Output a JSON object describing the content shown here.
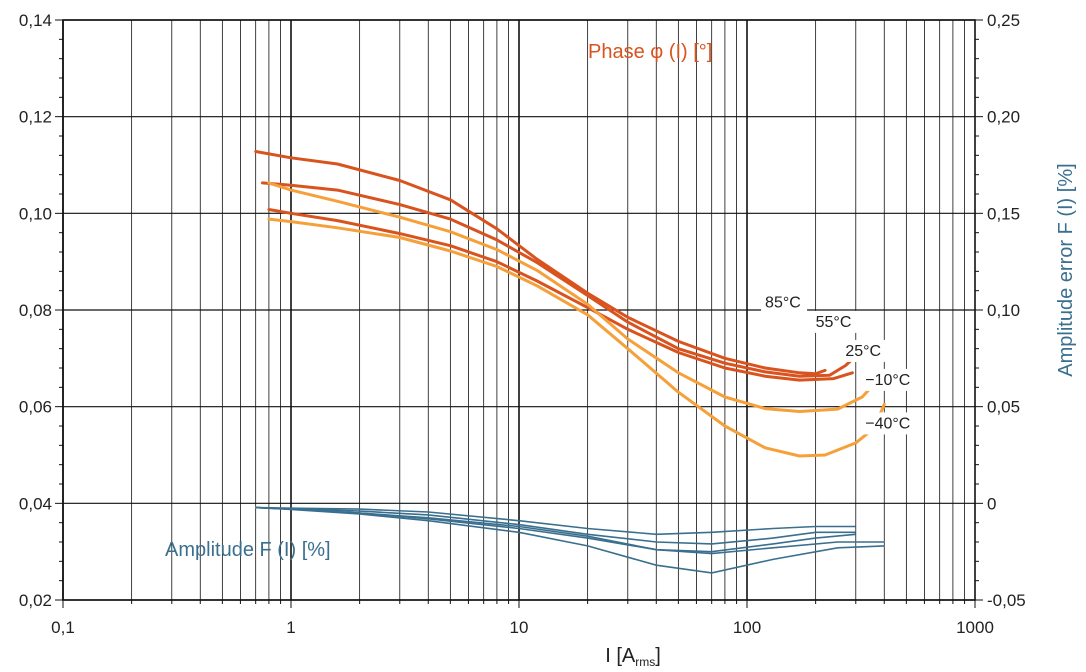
{
  "chart_data": {
    "type": "line",
    "x_scale": "log",
    "xlim": [
      0.1,
      1000
    ],
    "ylim_left": [
      0.02,
      0.14
    ],
    "ylim_right": [
      -0.05,
      0.25
    ],
    "grid": true,
    "x_ticks": [
      {
        "value": 0.1,
        "label": "0,1"
      },
      {
        "value": 1,
        "label": "1"
      },
      {
        "value": 10,
        "label": "10"
      },
      {
        "value": 100,
        "label": "100"
      },
      {
        "value": 1000,
        "label": "1000"
      }
    ],
    "y_left_ticks": [
      {
        "value": 0.02,
        "label": "0,02"
      },
      {
        "value": 0.04,
        "label": "0,04"
      },
      {
        "value": 0.06,
        "label": "0,06"
      },
      {
        "value": 0.08,
        "label": "0,08"
      },
      {
        "value": 0.1,
        "label": "0,10"
      },
      {
        "value": 0.12,
        "label": "0,12"
      },
      {
        "value": 0.14,
        "label": "0,14"
      }
    ],
    "y_right_ticks": [
      {
        "value": -0.05,
        "label": "-0,05"
      },
      {
        "value": 0,
        "label": "0"
      },
      {
        "value": 0.05,
        "label": "0,05"
      },
      {
        "value": 0.1,
        "label": "0,10"
      },
      {
        "value": 0.15,
        "label": "0,15"
      },
      {
        "value": 0.2,
        "label": "0,20"
      },
      {
        "value": 0.25,
        "label": "0,25"
      }
    ],
    "xlabel": {
      "main": "I [A",
      "sub": "rms",
      "end": "]"
    },
    "ylabel_right": "Amplitude error F (I) [%]",
    "annotations": {
      "phase": "Phase φ (I) [°]",
      "amplitude": "Amplitude F (I) [%]"
    },
    "colors": {
      "dark_orange": "#d9531e",
      "light_orange": "#f5a03a",
      "blue": "#3a6f8f",
      "right_axis_title": "#3a6f8f"
    },
    "temperature_labels": [
      {
        "text": "85°C",
        "x": 120,
        "y": 0.0805
      },
      {
        "text": "55°C",
        "x": 200,
        "y": 0.0765
      },
      {
        "text": "25°C",
        "x": 270,
        "y": 0.0705
      },
      {
        "text": "−10°C",
        "x": 330,
        "y": 0.0645
      },
      {
        "text": "−40°C",
        "x": 330,
        "y": 0.0555
      }
    ],
    "phase_series": [
      {
        "color_key": "dark_orange",
        "values": [
          [
            0.7,
            0.1128
          ],
          [
            1.0,
            0.1115
          ],
          [
            1.6,
            0.1102
          ],
          [
            3,
            0.1068
          ],
          [
            5,
            0.1028
          ],
          [
            8,
            0.0968
          ],
          [
            12,
            0.0905
          ],
          [
            20,
            0.0835
          ],
          [
            30,
            0.0785
          ],
          [
            50,
            0.0735
          ],
          [
            80,
            0.07
          ],
          [
            120,
            0.068
          ],
          [
            170,
            0.067
          ],
          [
            200,
            0.0668
          ],
          [
            220,
            0.0675
          ]
        ]
      },
      {
        "color_key": "dark_orange",
        "values": [
          [
            0.75,
            0.1063
          ],
          [
            1.0,
            0.1058
          ],
          [
            1.6,
            0.1048
          ],
          [
            3,
            0.1018
          ],
          [
            5,
            0.0988
          ],
          [
            8,
            0.0945
          ],
          [
            12,
            0.0898
          ],
          [
            20,
            0.083
          ],
          [
            30,
            0.0775
          ],
          [
            50,
            0.072
          ],
          [
            80,
            0.069
          ],
          [
            120,
            0.0672
          ],
          [
            170,
            0.0663
          ],
          [
            230,
            0.0665
          ],
          [
            270,
            0.0685
          ],
          [
            290,
            0.0698
          ]
        ]
      },
      {
        "color_key": "dark_orange",
        "values": [
          [
            0.8,
            0.1008
          ],
          [
            1.0,
            0.1
          ],
          [
            1.6,
            0.0985
          ],
          [
            3,
            0.0958
          ],
          [
            5,
            0.0933
          ],
          [
            8,
            0.09
          ],
          [
            12,
            0.086
          ],
          [
            20,
            0.0805
          ],
          [
            30,
            0.076
          ],
          [
            50,
            0.0712
          ],
          [
            80,
            0.068
          ],
          [
            120,
            0.0663
          ],
          [
            170,
            0.0655
          ],
          [
            240,
            0.0658
          ],
          [
            290,
            0.067
          ]
        ]
      },
      {
        "color_key": "light_orange",
        "values": [
          [
            0.8,
            0.1063
          ],
          [
            1.0,
            0.1048
          ],
          [
            1.6,
            0.1025
          ],
          [
            3,
            0.0992
          ],
          [
            5,
            0.0962
          ],
          [
            8,
            0.0925
          ],
          [
            12,
            0.0882
          ],
          [
            20,
            0.0812
          ],
          [
            30,
            0.074
          ],
          [
            50,
            0.067
          ],
          [
            80,
            0.062
          ],
          [
            120,
            0.0596
          ],
          [
            170,
            0.059
          ],
          [
            250,
            0.0595
          ],
          [
            320,
            0.062
          ],
          [
            380,
            0.0658
          ]
        ]
      },
      {
        "color_key": "light_orange",
        "values": [
          [
            0.8,
            0.0988
          ],
          [
            1.0,
            0.0983
          ],
          [
            1.6,
            0.097
          ],
          [
            3,
            0.095
          ],
          [
            5,
            0.0922
          ],
          [
            8,
            0.089
          ],
          [
            12,
            0.085
          ],
          [
            20,
            0.079
          ],
          [
            30,
            0.072
          ],
          [
            50,
            0.063
          ],
          [
            80,
            0.056
          ],
          [
            120,
            0.0515
          ],
          [
            170,
            0.0498
          ],
          [
            220,
            0.05
          ],
          [
            300,
            0.0525
          ],
          [
            360,
            0.0555
          ],
          [
            400,
            0.0605
          ]
        ]
      }
    ],
    "amplitude_series": [
      {
        "color_key": "blue",
        "values": [
          [
            0.7,
            -0.0022
          ],
          [
            1,
            -0.0025
          ],
          [
            2,
            -0.003
          ],
          [
            4,
            -0.0045
          ],
          [
            10,
            -0.009
          ],
          [
            20,
            -0.013
          ],
          [
            40,
            -0.016
          ],
          [
            70,
            -0.015
          ],
          [
            130,
            -0.013
          ],
          [
            200,
            -0.012
          ],
          [
            300,
            -0.012
          ]
        ]
      },
      {
        "color_key": "blue",
        "values": [
          [
            0.7,
            -0.0022
          ],
          [
            1,
            -0.0028
          ],
          [
            2,
            -0.004
          ],
          [
            4,
            -0.006
          ],
          [
            10,
            -0.011
          ],
          [
            20,
            -0.016
          ],
          [
            40,
            -0.02
          ],
          [
            70,
            -0.021
          ],
          [
            130,
            -0.018
          ],
          [
            200,
            -0.015
          ],
          [
            300,
            -0.015
          ]
        ]
      },
      {
        "color_key": "blue",
        "values": [
          [
            0.7,
            -0.0022
          ],
          [
            1,
            -0.003
          ],
          [
            2,
            -0.005
          ],
          [
            4,
            -0.008
          ],
          [
            10,
            -0.013
          ],
          [
            20,
            -0.018
          ],
          [
            40,
            -0.024
          ],
          [
            70,
            -0.025
          ],
          [
            130,
            -0.021
          ],
          [
            200,
            -0.018
          ],
          [
            300,
            -0.016
          ]
        ]
      },
      {
        "color_key": "blue",
        "values": [
          [
            0.7,
            -0.0022
          ],
          [
            1,
            -0.003
          ],
          [
            2,
            -0.005
          ],
          [
            4,
            -0.0075
          ],
          [
            10,
            -0.012
          ],
          [
            20,
            -0.017
          ],
          [
            40,
            -0.024
          ],
          [
            70,
            -0.026
          ],
          [
            130,
            -0.023
          ],
          [
            250,
            -0.02
          ],
          [
            400,
            -0.02
          ]
        ]
      },
      {
        "color_key": "blue",
        "values": [
          [
            0.7,
            -0.0022
          ],
          [
            1,
            -0.0032
          ],
          [
            2,
            -0.0055
          ],
          [
            4,
            -0.009
          ],
          [
            10,
            -0.015
          ],
          [
            20,
            -0.022
          ],
          [
            40,
            -0.032
          ],
          [
            70,
            -0.036
          ],
          [
            130,
            -0.029
          ],
          [
            250,
            -0.023
          ],
          [
            400,
            -0.022
          ]
        ]
      }
    ]
  }
}
